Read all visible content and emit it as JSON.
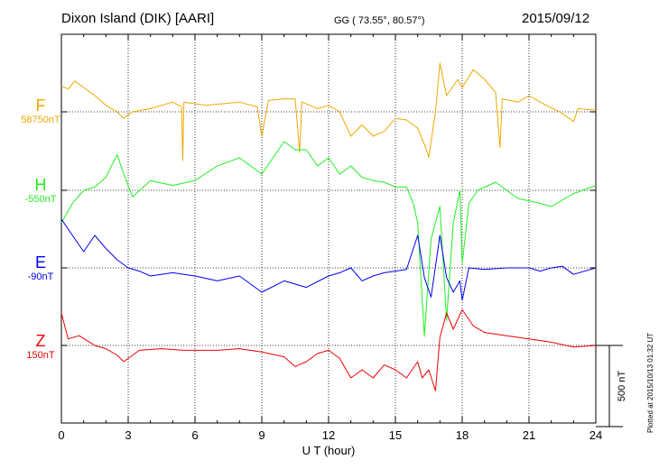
{
  "header": {
    "station": "Dixon Island (DIK)  [AARI]",
    "coords": "GG ( 73.55°,  80.57°)",
    "date": "2015/09/12"
  },
  "footer": {
    "plotted": "Plotted at 2015/10/13 01:32 UT"
  },
  "chart_data": {
    "type": "line",
    "xlabel": "U T (hour)",
    "xlim": [
      0,
      24
    ],
    "xticks": [
      0,
      3,
      6,
      9,
      12,
      15,
      18,
      21,
      24
    ],
    "grid": true,
    "scale_bar": {
      "label": "500 nT",
      "value_nT": 500
    },
    "series": [
      {
        "name": "F",
        "baseline": "58750nT",
        "color": "#f0a800",
        "points": [
          [
            0,
            160
          ],
          [
            0.3,
            140
          ],
          [
            0.6,
            190
          ],
          [
            1.0,
            150
          ],
          [
            1.5,
            100
          ],
          [
            2.0,
            40
          ],
          [
            2.5,
            0
          ],
          [
            2.8,
            -40
          ],
          [
            3.2,
            0
          ],
          [
            4.0,
            20
          ],
          [
            5.0,
            60
          ],
          [
            5.4,
            30
          ],
          [
            5.45,
            -300
          ],
          [
            5.5,
            60
          ],
          [
            6.5,
            40
          ],
          [
            8.0,
            60
          ],
          [
            8.8,
            30
          ],
          [
            9.0,
            -150
          ],
          [
            9.3,
            70
          ],
          [
            10.0,
            80
          ],
          [
            10.5,
            80
          ],
          [
            10.7,
            -250
          ],
          [
            10.8,
            60
          ],
          [
            11.5,
            20
          ],
          [
            12.0,
            40
          ],
          [
            12.5,
            0
          ],
          [
            13.0,
            -150
          ],
          [
            13.5,
            -80
          ],
          [
            14.0,
            -150
          ],
          [
            14.5,
            -120
          ],
          [
            15.0,
            -40
          ],
          [
            15.5,
            -50
          ],
          [
            16.0,
            -100
          ],
          [
            16.3,
            -200
          ],
          [
            16.5,
            -280
          ],
          [
            16.8,
            0
          ],
          [
            17.0,
            300
          ],
          [
            17.3,
            100
          ],
          [
            17.8,
            200
          ],
          [
            18.0,
            150
          ],
          [
            18.5,
            260
          ],
          [
            19.0,
            200
          ],
          [
            19.5,
            120
          ],
          [
            19.7,
            -220
          ],
          [
            19.8,
            80
          ],
          [
            20.5,
            60
          ],
          [
            21.0,
            100
          ],
          [
            21.5,
            60
          ],
          [
            22.5,
            -10
          ],
          [
            23.0,
            -60
          ],
          [
            23.2,
            20
          ],
          [
            24.0,
            10
          ]
        ]
      },
      {
        "name": "H",
        "baseline": "-550nT",
        "color": "#22ee22",
        "points": [
          [
            0,
            -200
          ],
          [
            0.5,
            -80
          ],
          [
            1.0,
            0
          ],
          [
            1.5,
            20
          ],
          [
            2.0,
            80
          ],
          [
            2.5,
            220
          ],
          [
            2.8,
            100
          ],
          [
            3.2,
            -40
          ],
          [
            4.0,
            60
          ],
          [
            5.0,
            30
          ],
          [
            6.0,
            60
          ],
          [
            7.0,
            150
          ],
          [
            8.0,
            200
          ],
          [
            9.0,
            100
          ],
          [
            9.5,
            200
          ],
          [
            10.0,
            300
          ],
          [
            10.5,
            250
          ],
          [
            11.0,
            250
          ],
          [
            11.5,
            150
          ],
          [
            12.0,
            200
          ],
          [
            12.5,
            100
          ],
          [
            13.0,
            150
          ],
          [
            13.5,
            80
          ],
          [
            14.0,
            60
          ],
          [
            14.5,
            50
          ],
          [
            15.0,
            20
          ],
          [
            15.5,
            20
          ],
          [
            15.8,
            -80
          ],
          [
            16.0,
            -200
          ],
          [
            16.3,
            -900
          ],
          [
            16.6,
            -300
          ],
          [
            17.0,
            -100
          ],
          [
            17.3,
            -800
          ],
          [
            17.6,
            -200
          ],
          [
            17.9,
            0
          ],
          [
            18.0,
            -450
          ],
          [
            18.3,
            -80
          ],
          [
            18.7,
            0
          ],
          [
            19.5,
            50
          ],
          [
            20.5,
            -50
          ],
          [
            21.5,
            -80
          ],
          [
            22.0,
            -100
          ],
          [
            23.0,
            -20
          ],
          [
            24.0,
            30
          ]
        ]
      },
      {
        "name": "E",
        "baseline": "-90nT",
        "color": "#0000ee",
        "points": [
          [
            0,
            300
          ],
          [
            0.5,
            200
          ],
          [
            1.0,
            100
          ],
          [
            1.5,
            200
          ],
          [
            2.0,
            120
          ],
          [
            2.5,
            50
          ],
          [
            3.0,
            0
          ],
          [
            3.5,
            -20
          ],
          [
            4.0,
            -50
          ],
          [
            5.0,
            -30
          ],
          [
            6.0,
            -50
          ],
          [
            7.0,
            -80
          ],
          [
            8.0,
            -50
          ],
          [
            9.0,
            -150
          ],
          [
            10.0,
            -80
          ],
          [
            11.0,
            -120
          ],
          [
            12.0,
            -50
          ],
          [
            12.5,
            -30
          ],
          [
            13.0,
            0
          ],
          [
            13.5,
            -80
          ],
          [
            14.0,
            -50
          ],
          [
            14.5,
            -30
          ],
          [
            15.0,
            -20
          ],
          [
            15.5,
            -10
          ],
          [
            16.0,
            200
          ],
          [
            16.3,
            -60
          ],
          [
            16.6,
            -180
          ],
          [
            17.0,
            200
          ],
          [
            17.3,
            -60
          ],
          [
            17.6,
            -150
          ],
          [
            17.9,
            -80
          ],
          [
            18.0,
            -200
          ],
          [
            18.3,
            0
          ],
          [
            19.0,
            -10
          ],
          [
            20.0,
            0
          ],
          [
            21.0,
            0
          ],
          [
            21.5,
            -20
          ],
          [
            22.0,
            0
          ],
          [
            22.5,
            10
          ],
          [
            23.0,
            -40
          ],
          [
            24.0,
            0
          ]
        ]
      },
      {
        "name": "Z",
        "baseline": "150nT",
        "color": "#ee0000",
        "points": [
          [
            0,
            200
          ],
          [
            0.3,
            40
          ],
          [
            0.8,
            60
          ],
          [
            1.5,
            0
          ],
          [
            2.0,
            -20
          ],
          [
            2.5,
            -60
          ],
          [
            2.8,
            -100
          ],
          [
            3.0,
            -80
          ],
          [
            3.5,
            -30
          ],
          [
            4.5,
            -20
          ],
          [
            5.5,
            -30
          ],
          [
            7.0,
            -30
          ],
          [
            8.0,
            -20
          ],
          [
            9.0,
            -40
          ],
          [
            10.0,
            -70
          ],
          [
            10.5,
            -130
          ],
          [
            11.0,
            -100
          ],
          [
            11.5,
            -50
          ],
          [
            12.0,
            -30
          ],
          [
            12.5,
            -80
          ],
          [
            13.0,
            -200
          ],
          [
            13.5,
            -150
          ],
          [
            14.0,
            -200
          ],
          [
            14.5,
            -120
          ],
          [
            15.0,
            -150
          ],
          [
            15.5,
            -200
          ],
          [
            16.0,
            -100
          ],
          [
            16.2,
            -200
          ],
          [
            16.5,
            -150
          ],
          [
            16.8,
            -280
          ],
          [
            17.0,
            50
          ],
          [
            17.3,
            200
          ],
          [
            17.6,
            100
          ],
          [
            18.0,
            220
          ],
          [
            18.5,
            120
          ],
          [
            19.0,
            80
          ],
          [
            20.0,
            60
          ],
          [
            21.0,
            40
          ],
          [
            22.0,
            20
          ],
          [
            23.0,
            -10
          ],
          [
            24.0,
            0
          ]
        ]
      }
    ]
  }
}
